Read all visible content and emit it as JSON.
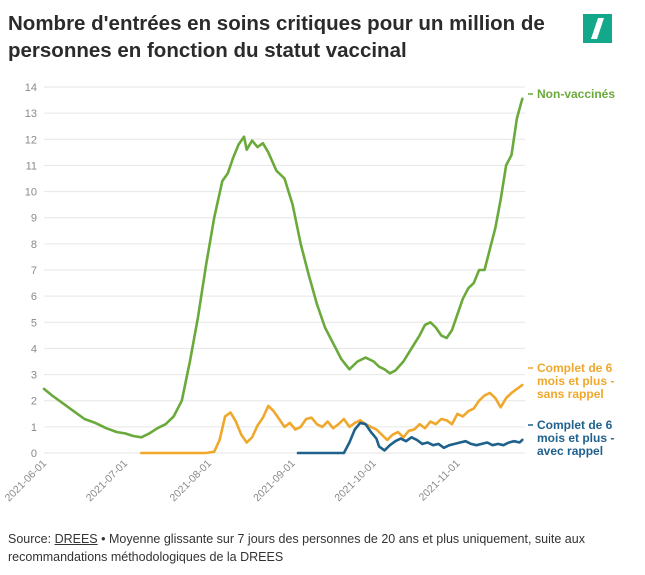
{
  "title": "Nombre d'entrées en soins critiques pour un million de personnes en fonction du statut vaccinal",
  "logo": {
    "icon": "huffpost-slash-logo",
    "color": "#13a88a"
  },
  "source": {
    "prefix": "Source: ",
    "link": "DREES",
    "text": " • Moyenne glissante sur 7 jours des personnes de 20 ans et plus uniquement, suite aux recommandations méthodologiques de la DREES"
  },
  "chart_data": {
    "type": "line",
    "title": "",
    "xlabel": "",
    "ylabel": "",
    "ylim": [
      0,
      14
    ],
    "yticks": [
      0,
      1,
      2,
      3,
      4,
      5,
      6,
      7,
      8,
      9,
      10,
      11,
      12,
      13,
      14
    ],
    "grid": "horizontal",
    "x_domain": [
      "2021-06-01",
      "2021-11-26"
    ],
    "xticks": [
      "2021-06-01",
      "2021-07-01",
      "2021-08-01",
      "2021-09-01",
      "2021-10-01",
      "2021-11-01"
    ],
    "legend": "labels at right end of lines",
    "series": [
      {
        "name": "Non-vaccinés",
        "color": "#6aaa3b",
        "points": [
          [
            "2021-06-01",
            2.45
          ],
          [
            "2021-06-04",
            2.2
          ],
          [
            "2021-06-08",
            1.9
          ],
          [
            "2021-06-12",
            1.6
          ],
          [
            "2021-06-16",
            1.3
          ],
          [
            "2021-06-20",
            1.15
          ],
          [
            "2021-06-24",
            0.95
          ],
          [
            "2021-06-28",
            0.8
          ],
          [
            "2021-07-01",
            0.75
          ],
          [
            "2021-07-04",
            0.65
          ],
          [
            "2021-07-07",
            0.6
          ],
          [
            "2021-07-10",
            0.75
          ],
          [
            "2021-07-13",
            0.95
          ],
          [
            "2021-07-16",
            1.1
          ],
          [
            "2021-07-19",
            1.4
          ],
          [
            "2021-07-22",
            2.0
          ],
          [
            "2021-07-25",
            3.5
          ],
          [
            "2021-07-28",
            5.2
          ],
          [
            "2021-07-31",
            7.2
          ],
          [
            "2021-08-03",
            9.0
          ],
          [
            "2021-08-06",
            10.4
          ],
          [
            "2021-08-08",
            10.7
          ],
          [
            "2021-08-10",
            11.3
          ],
          [
            "2021-08-12",
            11.8
          ],
          [
            "2021-08-14",
            12.1
          ],
          [
            "2021-08-15",
            11.6
          ],
          [
            "2021-08-17",
            11.95
          ],
          [
            "2021-08-19",
            11.7
          ],
          [
            "2021-08-21",
            11.85
          ],
          [
            "2021-08-23",
            11.5
          ],
          [
            "2021-08-26",
            10.8
          ],
          [
            "2021-08-29",
            10.5
          ],
          [
            "2021-09-01",
            9.5
          ],
          [
            "2021-09-04",
            8.0
          ],
          [
            "2021-09-07",
            6.8
          ],
          [
            "2021-09-10",
            5.7
          ],
          [
            "2021-09-13",
            4.8
          ],
          [
            "2021-09-16",
            4.2
          ],
          [
            "2021-09-19",
            3.6
          ],
          [
            "2021-09-22",
            3.2
          ],
          [
            "2021-09-25",
            3.5
          ],
          [
            "2021-09-28",
            3.65
          ],
          [
            "2021-10-01",
            3.5
          ],
          [
            "2021-10-03",
            3.3
          ],
          [
            "2021-10-05",
            3.2
          ],
          [
            "2021-10-07",
            3.05
          ],
          [
            "2021-10-09",
            3.15
          ],
          [
            "2021-10-12",
            3.5
          ],
          [
            "2021-10-15",
            4.0
          ],
          [
            "2021-10-18",
            4.5
          ],
          [
            "2021-10-20",
            4.9
          ],
          [
            "2021-10-22",
            5.0
          ],
          [
            "2021-10-24",
            4.8
          ],
          [
            "2021-10-26",
            4.5
          ],
          [
            "2021-10-28",
            4.4
          ],
          [
            "2021-10-30",
            4.7
          ],
          [
            "2021-11-01",
            5.3
          ],
          [
            "2021-11-03",
            5.9
          ],
          [
            "2021-11-05",
            6.3
          ],
          [
            "2021-11-07",
            6.5
          ],
          [
            "2021-11-09",
            7.0
          ],
          [
            "2021-11-11",
            7.0
          ],
          [
            "2021-11-13",
            7.8
          ],
          [
            "2021-11-15",
            8.6
          ],
          [
            "2021-11-17",
            9.7
          ],
          [
            "2021-11-19",
            11.0
          ],
          [
            "2021-11-21",
            11.4
          ],
          [
            "2021-11-23",
            12.8
          ],
          [
            "2021-11-25",
            13.55
          ]
        ]
      },
      {
        "name": "Complet de 6 mois et plus - sans rappel",
        "color": "#efa82c",
        "points": [
          [
            "2021-07-07",
            0.0
          ],
          [
            "2021-07-20",
            0.0
          ],
          [
            "2021-07-31",
            0.0
          ],
          [
            "2021-08-03",
            0.05
          ],
          [
            "2021-08-05",
            0.5
          ],
          [
            "2021-08-07",
            1.4
          ],
          [
            "2021-08-09",
            1.55
          ],
          [
            "2021-08-11",
            1.2
          ],
          [
            "2021-08-13",
            0.7
          ],
          [
            "2021-08-15",
            0.4
          ],
          [
            "2021-08-17",
            0.6
          ],
          [
            "2021-08-19",
            1.05
          ],
          [
            "2021-08-21",
            1.35
          ],
          [
            "2021-08-23",
            1.8
          ],
          [
            "2021-08-25",
            1.6
          ],
          [
            "2021-08-27",
            1.3
          ],
          [
            "2021-08-29",
            1.0
          ],
          [
            "2021-08-31",
            1.15
          ],
          [
            "2021-09-02",
            0.9
          ],
          [
            "2021-09-04",
            1.0
          ],
          [
            "2021-09-06",
            1.3
          ],
          [
            "2021-09-08",
            1.35
          ],
          [
            "2021-09-10",
            1.1
          ],
          [
            "2021-09-12",
            1.0
          ],
          [
            "2021-09-14",
            1.2
          ],
          [
            "2021-09-16",
            0.95
          ],
          [
            "2021-09-18",
            1.1
          ],
          [
            "2021-09-20",
            1.3
          ],
          [
            "2021-09-22",
            1.0
          ],
          [
            "2021-09-24",
            1.15
          ],
          [
            "2021-09-26",
            1.25
          ],
          [
            "2021-09-28",
            1.1
          ],
          [
            "2021-09-30",
            1.0
          ],
          [
            "2021-10-02",
            0.9
          ],
          [
            "2021-10-04",
            0.7
          ],
          [
            "2021-10-06",
            0.5
          ],
          [
            "2021-10-08",
            0.7
          ],
          [
            "2021-10-10",
            0.8
          ],
          [
            "2021-10-12",
            0.6
          ],
          [
            "2021-10-14",
            0.85
          ],
          [
            "2021-10-16",
            0.9
          ],
          [
            "2021-10-18",
            1.1
          ],
          [
            "2021-10-20",
            0.95
          ],
          [
            "2021-10-22",
            1.2
          ],
          [
            "2021-10-24",
            1.1
          ],
          [
            "2021-10-26",
            1.3
          ],
          [
            "2021-10-28",
            1.25
          ],
          [
            "2021-10-30",
            1.1
          ],
          [
            "2021-11-01",
            1.5
          ],
          [
            "2021-11-03",
            1.4
          ],
          [
            "2021-11-05",
            1.6
          ],
          [
            "2021-11-07",
            1.7
          ],
          [
            "2021-11-09",
            2.0
          ],
          [
            "2021-11-11",
            2.2
          ],
          [
            "2021-11-13",
            2.3
          ],
          [
            "2021-11-15",
            2.1
          ],
          [
            "2021-11-17",
            1.75
          ],
          [
            "2021-11-19",
            2.1
          ],
          [
            "2021-11-21",
            2.3
          ],
          [
            "2021-11-23",
            2.45
          ],
          [
            "2021-11-25",
            2.6
          ]
        ]
      },
      {
        "name": "Complet de 6 mois et plus - avec rappel",
        "color": "#1f618d",
        "points": [
          [
            "2021-09-03",
            0.0
          ],
          [
            "2021-09-12",
            0.0
          ],
          [
            "2021-09-20",
            0.0
          ],
          [
            "2021-09-22",
            0.4
          ],
          [
            "2021-09-24",
            0.9
          ],
          [
            "2021-09-26",
            1.15
          ],
          [
            "2021-09-28",
            1.1
          ],
          [
            "2021-09-30",
            0.8
          ],
          [
            "2021-10-02",
            0.55
          ],
          [
            "2021-10-03",
            0.25
          ],
          [
            "2021-10-05",
            0.1
          ],
          [
            "2021-10-07",
            0.3
          ],
          [
            "2021-10-09",
            0.45
          ],
          [
            "2021-10-11",
            0.55
          ],
          [
            "2021-10-13",
            0.45
          ],
          [
            "2021-10-15",
            0.6
          ],
          [
            "2021-10-17",
            0.5
          ],
          [
            "2021-10-19",
            0.35
          ],
          [
            "2021-10-21",
            0.4
          ],
          [
            "2021-10-23",
            0.3
          ],
          [
            "2021-10-25",
            0.35
          ],
          [
            "2021-10-27",
            0.2
          ],
          [
            "2021-10-29",
            0.3
          ],
          [
            "2021-10-31",
            0.35
          ],
          [
            "2021-11-02",
            0.4
          ],
          [
            "2021-11-04",
            0.45
          ],
          [
            "2021-11-06",
            0.35
          ],
          [
            "2021-11-08",
            0.3
          ],
          [
            "2021-11-10",
            0.35
          ],
          [
            "2021-11-12",
            0.4
          ],
          [
            "2021-11-14",
            0.3
          ],
          [
            "2021-11-16",
            0.35
          ],
          [
            "2021-11-18",
            0.3
          ],
          [
            "2021-11-20",
            0.4
          ],
          [
            "2021-11-22",
            0.45
          ],
          [
            "2021-11-24",
            0.4
          ],
          [
            "2021-11-25",
            0.5
          ]
        ]
      }
    ],
    "end_labels": [
      {
        "lines": [
          "Non-vaccinés"
        ],
        "color": "#6aaa3b"
      },
      {
        "lines": [
          "Complet de 6",
          "mois et plus -",
          "sans rappel"
        ],
        "color": "#efa82c"
      },
      {
        "lines": [
          "Complet de 6",
          "mois et plus -",
          "avec rappel"
        ],
        "color": "#1f618d"
      }
    ]
  }
}
